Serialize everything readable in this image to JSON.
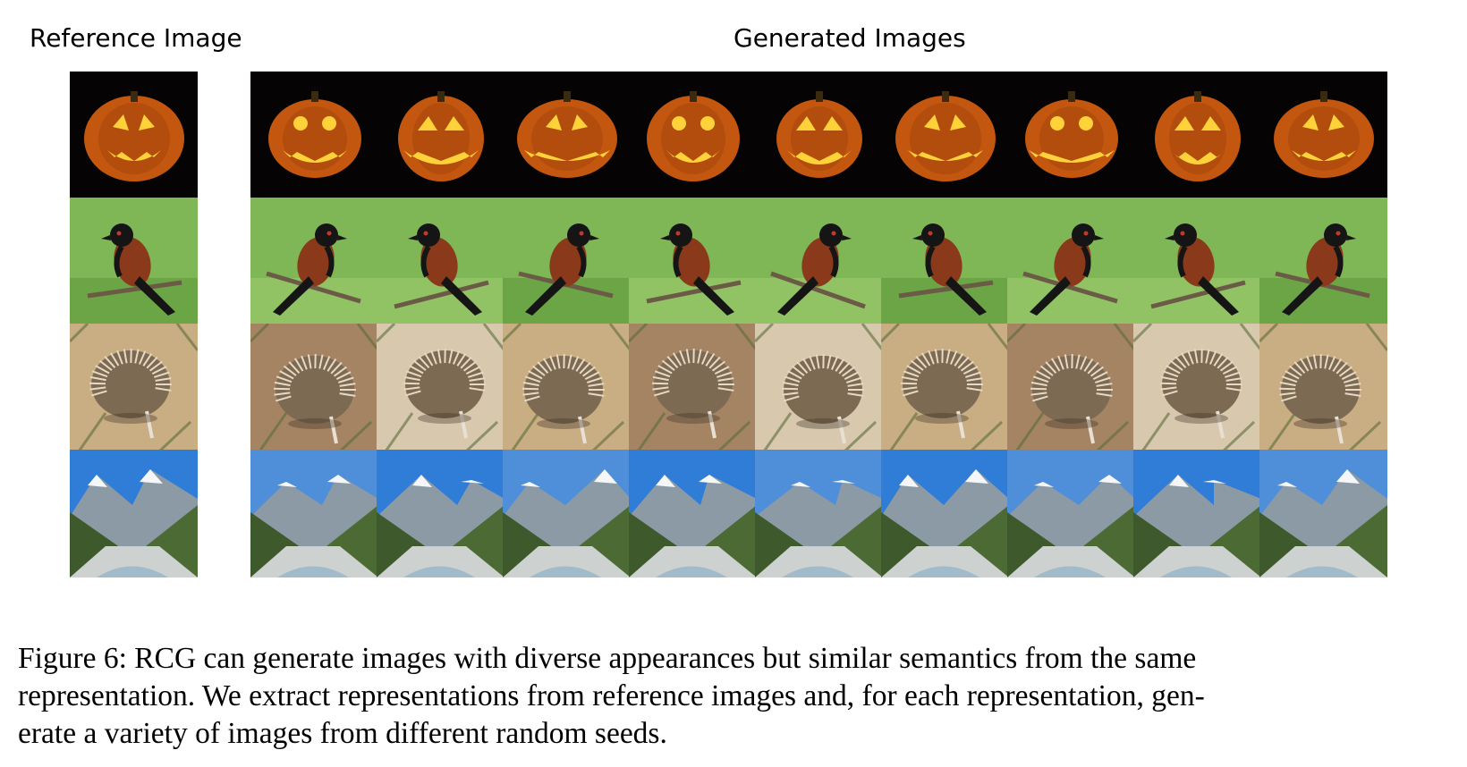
{
  "headers": {
    "reference": "Reference Image",
    "generated": "Generated Images"
  },
  "rows": [
    {
      "subject": "pumpkin-icon",
      "palette": {
        "bg": "#050303",
        "fg": "#c4570f",
        "hi": "#ffd23a"
      }
    },
    {
      "subject": "bird-icon",
      "palette": {
        "bg": "#7fb656",
        "fg": "#8a3a1a",
        "hi": "#151515"
      }
    },
    {
      "subject": "echidna-icon",
      "palette": {
        "bg": "#b89a72",
        "fg": "#7d6a52",
        "hi": "#e6dac6"
      }
    },
    {
      "subject": "mountain-icon",
      "palette": {
        "bg": "#2f7dd6",
        "fg": "#3e5a2c",
        "hi": "#f4f6f8"
      }
    }
  ],
  "caption": {
    "line1": "Figure 6: RCG can generate images with diverse appearances but similar semantics from the same",
    "line2": "representation. We extract representations from reference images and, for each representation, gen-",
    "line3": "erate a variety of images from different random seeds."
  }
}
